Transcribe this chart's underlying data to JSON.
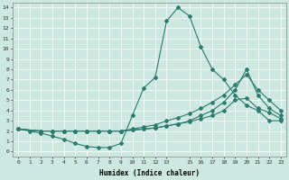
{
  "xlabel": "Humidex (Indice chaleur)",
  "background_color": "#cce8e0",
  "line_color": "#2d7a6e",
  "xlim": [
    -0.5,
    23.5
  ],
  "ylim": [
    -0.5,
    14.5
  ],
  "yticks": [
    0,
    1,
    2,
    3,
    4,
    5,
    6,
    7,
    8,
    9,
    10,
    11,
    12,
    13,
    14
  ],
  "xtick_positions": [
    0,
    1,
    2,
    3,
    4,
    5,
    6,
    7,
    8,
    9,
    10,
    11,
    12,
    13,
    15,
    16,
    17,
    18,
    19,
    20,
    21,
    22,
    23
  ],
  "xtick_labels": [
    "0",
    "1",
    "2",
    "3",
    "4",
    "5",
    "6",
    "7",
    "8",
    "9",
    "10",
    "11",
    "12",
    "13",
    "15",
    "16",
    "17",
    "18",
    "19",
    "20",
    "21",
    "22",
    "23"
  ],
  "line1_x": [
    0,
    1,
    2,
    3,
    4,
    5,
    6,
    7,
    8,
    9,
    10,
    11,
    12,
    13,
    14,
    15,
    16,
    17,
    18,
    19,
    20,
    21,
    22,
    23
  ],
  "line1_y": [
    2.2,
    2.0,
    1.8,
    1.5,
    1.2,
    0.8,
    0.5,
    0.4,
    0.4,
    0.8,
    3.5,
    6.2,
    7.2,
    12.7,
    14.0,
    13.2,
    10.2,
    8.0,
    7.0,
    5.5,
    4.5,
    4.0,
    3.0,
    3.0
  ],
  "line2_x": [
    0,
    2,
    3,
    4,
    5,
    6,
    7,
    8,
    9,
    10,
    11,
    12,
    13,
    14,
    15,
    16,
    17,
    18,
    19,
    20,
    21,
    22,
    23
  ],
  "line2_y": [
    2.2,
    2.0,
    2.0,
    2.0,
    2.0,
    2.0,
    2.0,
    2.0,
    2.0,
    2.1,
    2.2,
    2.3,
    2.5,
    2.7,
    2.9,
    3.2,
    3.5,
    4.0,
    5.0,
    5.2,
    4.2,
    3.8,
    3.2
  ],
  "line3_x": [
    0,
    2,
    3,
    4,
    5,
    6,
    7,
    8,
    9,
    10,
    11,
    12,
    13,
    14,
    15,
    16,
    17,
    18,
    19,
    20,
    21,
    22,
    23
  ],
  "line3_y": [
    2.2,
    2.0,
    2.0,
    2.0,
    2.0,
    2.0,
    2.0,
    2.0,
    2.0,
    2.1,
    2.2,
    2.3,
    2.5,
    2.7,
    3.0,
    3.5,
    4.0,
    4.8,
    6.0,
    8.0,
    5.5,
    4.2,
    3.5
  ],
  "line4_x": [
    0,
    2,
    3,
    4,
    5,
    6,
    7,
    8,
    9,
    10,
    11,
    12,
    13,
    14,
    15,
    16,
    17,
    18,
    19,
    20,
    21,
    22,
    23
  ],
  "line4_y": [
    2.2,
    2.0,
    2.0,
    2.0,
    2.0,
    2.0,
    2.0,
    2.0,
    2.0,
    2.2,
    2.4,
    2.6,
    3.0,
    3.3,
    3.7,
    4.2,
    4.8,
    5.5,
    6.5,
    7.5,
    6.0,
    5.0,
    4.0
  ]
}
